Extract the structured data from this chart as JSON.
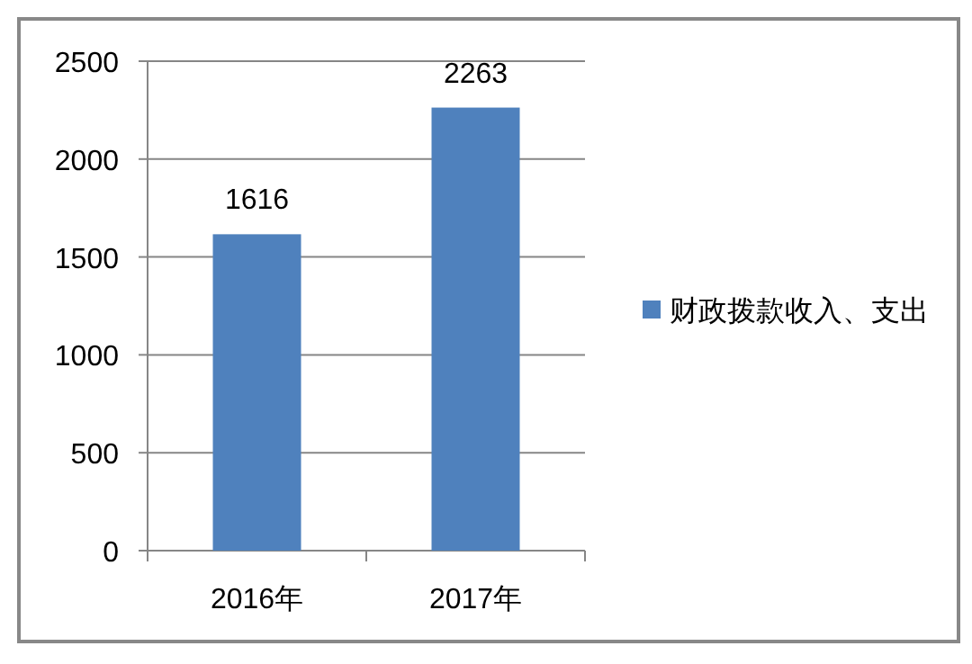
{
  "chart_data": {
    "type": "bar",
    "categories": [
      "2016年",
      "2017年"
    ],
    "series": [
      {
        "name": "财政拨款收入、支出",
        "color": "#4f81bd",
        "values": [
          1616,
          2263
        ]
      }
    ],
    "ylim": [
      0,
      2500
    ],
    "yticks": [
      0,
      500,
      1000,
      1500,
      2000,
      2500
    ],
    "grid": "y",
    "legend": "right",
    "data_labels": true
  }
}
